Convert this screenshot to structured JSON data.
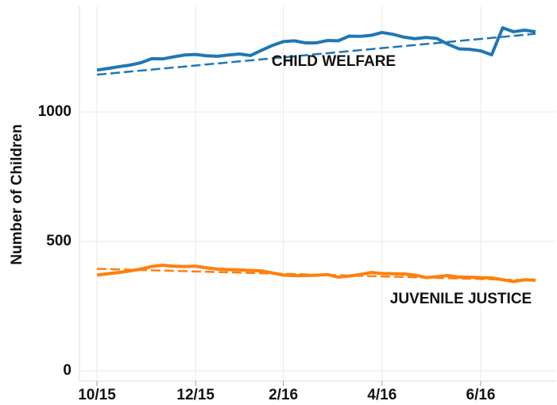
{
  "chart_data": {
    "type": "line",
    "y_label": "Number of Children",
    "categories": [
      "10/15",
      null,
      null,
      null,
      null,
      null,
      null,
      null,
      null,
      "12/15",
      null,
      null,
      null,
      null,
      null,
      null,
      null,
      "2/16",
      null,
      null,
      null,
      null,
      null,
      null,
      null,
      null,
      "4/16",
      null,
      null,
      null,
      null,
      null,
      null,
      null,
      null,
      "6/16",
      null,
      null,
      null,
      null,
      null
    ],
    "series": [
      {
        "name": "CHILD WELFARE",
        "color": "#1f77b4",
        "values": [
          1162,
          1168,
          1175,
          1181,
          1190,
          1206,
          1205,
          1213,
          1220,
          1222,
          1217,
          1215,
          1220,
          1224,
          1218,
          1238,
          1257,
          1272,
          1275,
          1267,
          1267,
          1276,
          1275,
          1293,
          1292,
          1296,
          1307,
          1300,
          1289,
          1283,
          1288,
          1284,
          1262,
          1244,
          1242,
          1236,
          1221,
          1325,
          1310,
          1316,
          1310
        ],
        "trend": [
          1144,
          1302
        ]
      },
      {
        "name": "JUVENILE JUSTICE",
        "color": "#ff7f0e",
        "values": [
          370,
          375,
          380,
          386,
          393,
          403,
          408,
          404,
          403,
          404,
          398,
          393,
          391,
          390,
          388,
          386,
          378,
          370,
          368,
          368,
          369,
          372,
          362,
          366,
          372,
          380,
          376,
          375,
          374,
          370,
          360,
          364,
          368,
          362,
          362,
          360,
          359,
          352,
          345,
          352,
          350
        ],
        "trend": [
          394,
          349
        ]
      }
    ],
    "ylim": [
      -40,
      1408
    ],
    "yticks": [
      0,
      500,
      1000
    ],
    "grid": true
  }
}
